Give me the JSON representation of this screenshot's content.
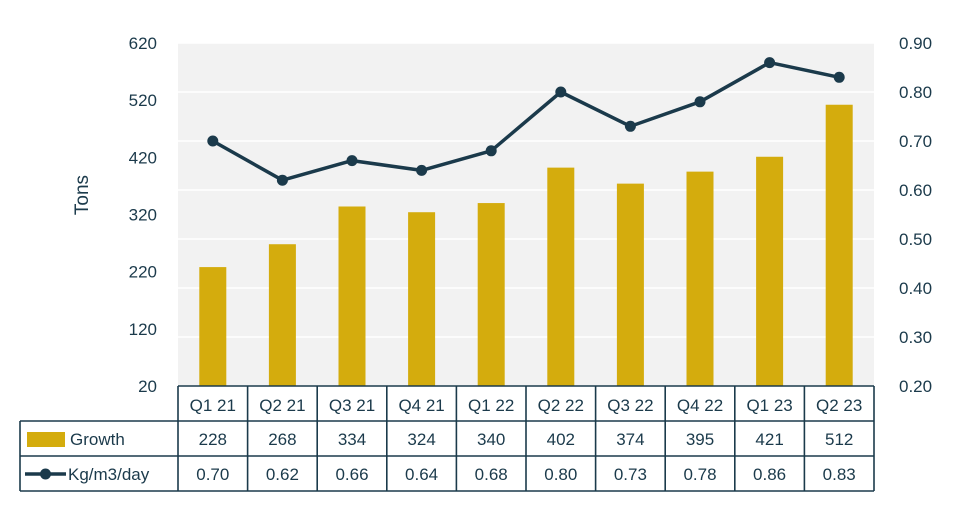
{
  "chart_data": {
    "type": "bar+line",
    "title": "",
    "ylabel": "Tons",
    "ylim": [
      20,
      620
    ],
    "yticks": [
      20,
      120,
      220,
      320,
      420,
      520,
      620
    ],
    "y2lim": [
      0.2,
      0.9
    ],
    "y2ticks": [
      "0.20",
      "0.30",
      "0.40",
      "0.50",
      "0.60",
      "0.70",
      "0.80",
      "0.90"
    ],
    "categories": [
      "Q1 21",
      "Q2 21",
      "Q3 21",
      "Q4 21",
      "Q1 22",
      "Q2 22",
      "Q3 22",
      "Q4 22",
      "Q1 23",
      "Q2 23"
    ],
    "series": [
      {
        "name": "Growth",
        "type": "bar",
        "axis": "left",
        "color": "#d4ac0d",
        "values": [
          228,
          268,
          334,
          324,
          340,
          402,
          374,
          395,
          421,
          512
        ],
        "table_values": [
          "228",
          "268",
          "334",
          "324",
          "340",
          "402",
          "374",
          "395",
          "421",
          "512"
        ]
      },
      {
        "name": "Kg/m3/day",
        "type": "line",
        "axis": "right",
        "color": "#1b3a4b",
        "values": [
          0.7,
          0.62,
          0.66,
          0.64,
          0.68,
          0.8,
          0.73,
          0.78,
          0.86,
          0.83
        ],
        "table_values": [
          "0.70",
          "0.62",
          "0.66",
          "0.64",
          "0.68",
          "0.80",
          "0.73",
          "0.78",
          "0.86",
          "0.83"
        ]
      }
    ],
    "grid": true,
    "data_table": true,
    "colors": {
      "plot_bg": "#f2f2f2",
      "axis_text": "#1b3a4b",
      "table_line": "#1b3a4b"
    }
  }
}
